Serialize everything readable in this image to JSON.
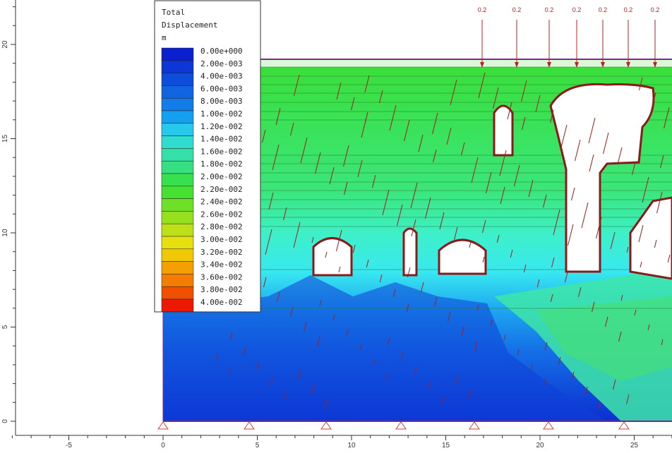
{
  "legend": {
    "title_lines": [
      "Total",
      "Displacement",
      "m"
    ],
    "entries": [
      "0.00e+000",
      "2.00e-003",
      "4.00e-003",
      "6.00e-003",
      "8.00e-003",
      "1.00e-002",
      "1.20e-002",
      "1.40e-002",
      "1.60e-002",
      "1.80e-002",
      "2.00e-002",
      "2.20e-002",
      "2.40e-002",
      "2.60e-002",
      "2.80e-002",
      "3.00e-002",
      "3.20e-002",
      "3.40e-002",
      "3.60e-002",
      "3.80e-002",
      "4.00e-002"
    ]
  },
  "axes": {
    "x_ticks": [
      -5,
      0,
      5,
      10,
      15,
      20,
      25
    ],
    "y_ticks": [
      0,
      5,
      10,
      15,
      20
    ]
  },
  "loads": [
    "0.2",
    "0.2",
    "0.2",
    "0.2",
    "0.2",
    "0.2",
    "0.2"
  ]
}
